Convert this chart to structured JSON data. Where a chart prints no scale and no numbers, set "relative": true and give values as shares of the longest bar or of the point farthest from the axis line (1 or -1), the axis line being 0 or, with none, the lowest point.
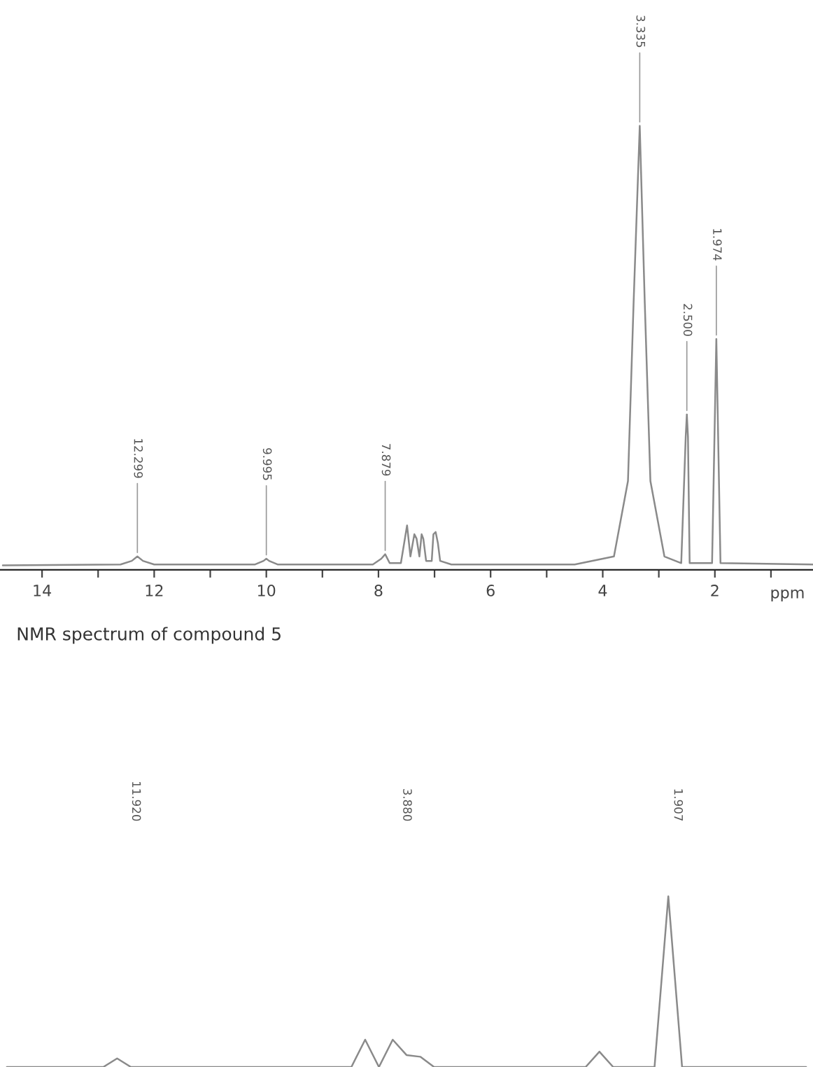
{
  "chart_data": [
    {
      "type": "line",
      "relative": true,
      "xlabel": "ppm",
      "grid": false,
      "legend": false,
      "marker": "none",
      "line_style": "solid",
      "xlim": [
        14.75,
        0.25
      ],
      "xticks": [
        14,
        {
          "value": 13,
          "label": null
        },
        12,
        {
          "value": 11,
          "label": null
        },
        10,
        {
          "value": 9,
          "label": null
        },
        8,
        {
          "value": 7,
          "label": null
        },
        6,
        {
          "value": 5,
          "label": null
        },
        4,
        {
          "value": 3,
          "label": null
        },
        2,
        {
          "value": 1,
          "label": null
        }
      ],
      "series": [
        {
          "color": "#8a8a8a",
          "x": [
            14.7,
            12.6,
            12.4,
            12.3,
            12.2,
            12.0,
            10.2,
            10.05,
            10.0,
            9.95,
            9.8,
            8.1,
            7.95,
            7.88,
            7.8,
            7.6,
            7.49,
            7.43,
            7.36,
            7.32,
            7.27,
            7.23,
            7.2,
            7.15,
            7.05,
            7.02,
            6.98,
            6.94,
            6.9,
            6.7,
            4.5,
            3.8,
            3.55,
            3.45,
            3.34,
            3.25,
            3.15,
            2.9,
            2.6,
            2.52,
            2.5,
            2.48,
            2.45,
            2.05,
            1.974,
            1.9,
            0.25
          ],
          "values": [
            0.01,
            0.012,
            0.02,
            0.03,
            0.02,
            0.012,
            0.012,
            0.02,
            0.025,
            0.02,
            0.012,
            0.012,
            0.025,
            0.035,
            0.015,
            0.015,
            0.1,
            0.03,
            0.08,
            0.07,
            0.03,
            0.08,
            0.07,
            0.02,
            0.02,
            0.08,
            0.085,
            0.06,
            0.02,
            0.012,
            0.012,
            0.03,
            0.2,
            0.6,
            1.0,
            0.6,
            0.2,
            0.03,
            0.015,
            0.3,
            0.35,
            0.3,
            0.015,
            0.015,
            0.52,
            0.015,
            0.012
          ]
        }
      ],
      "annotations": [
        {
          "text": "12.299",
          "x": 12.3,
          "y": 0.03
        },
        {
          "text": "9.995",
          "x": 10.0,
          "y": 0.025
        },
        {
          "text": "7.879",
          "x": 7.88,
          "y": 0.035
        },
        {
          "text": "3.335",
          "x": 3.34,
          "y": 1.0
        },
        {
          "text": "2.500",
          "x": 2.5,
          "y": 0.35
        },
        {
          "text": "1.974",
          "x": 1.974,
          "y": 0.52
        },
        "NMR spectrum of compound 5"
      ]
    },
    {
      "type": "line",
      "relative": true,
      "grid": false,
      "legend": false,
      "marker": "none",
      "line_style": "solid",
      "categories": [
        null,
        null,
        null,
        null,
        null,
        null,
        null,
        null,
        null,
        null,
        null,
        null,
        null,
        null,
        null,
        null,
        null,
        null,
        null,
        null,
        null,
        null,
        null,
        null,
        null,
        null,
        null,
        null,
        null,
        null,
        null,
        null,
        null,
        null,
        null,
        null,
        null,
        null,
        null,
        null,
        null,
        null,
        null,
        null,
        null,
        null,
        null,
        null,
        null,
        null,
        null,
        null,
        null,
        null,
        null,
        null,
        null,
        null,
        null
      ],
      "series": [
        {
          "color": "#8a8a8a",
          "values": [
            0,
            0,
            0,
            0,
            0,
            0,
            0,
            0,
            0.05,
            0,
            0,
            0,
            0,
            0,
            0,
            0,
            0,
            0,
            0,
            0,
            0,
            0,
            0,
            0,
            0,
            0,
            0.16,
            0,
            0.16,
            0.07,
            0.06,
            0,
            0,
            0,
            0,
            0,
            0,
            0,
            0,
            0,
            0,
            0,
            0,
            0.09,
            0,
            0,
            0,
            0,
            1.0,
            0,
            0,
            0,
            0,
            0,
            0,
            0,
            0,
            0,
            0
          ]
        }
      ],
      "annotations": [
        "11.920",
        "3.880",
        "1.907"
      ]
    }
  ]
}
